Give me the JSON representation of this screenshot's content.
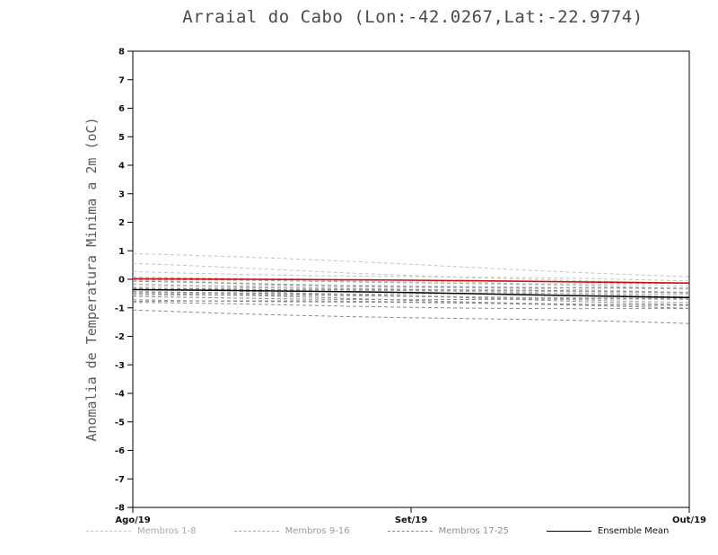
{
  "window": {
    "background": "#ffffff"
  },
  "chart_data": {
    "type": "line",
    "title": "Arraial do Cabo (Lon:-42.0267,Lat:-22.9774)",
    "ylabel": "Anomalia de Temperatura Minima a 2m (oC)",
    "xlabel": "",
    "ylim": [
      -8,
      8
    ],
    "ytick_step": 1,
    "xtick_labels": [
      "Ago/19",
      "Set/19",
      "Out/19"
    ],
    "xtick_positions": [
      0,
      0.5,
      1
    ],
    "grid": false,
    "frame_color": "#000000",
    "tick_label_color": "#111111",
    "member_groups": [
      {
        "name": "Membros 1-8",
        "color": "#c4c4c4"
      },
      {
        "name": "Membros 9-16",
        "color": "#a6a6a6"
      },
      {
        "name": "Membros 17-25",
        "color": "#8a8a8a"
      }
    ],
    "members": [
      {
        "group": 0,
        "start": 0.9,
        "end": 0.12
      },
      {
        "group": 0,
        "start": 0.52,
        "end": -0.18
      },
      {
        "group": 0,
        "start": 0.28,
        "end": -0.08
      },
      {
        "group": 0,
        "start": 0.12,
        "end": -0.3
      },
      {
        "group": 0,
        "start": 0.02,
        "end": -0.22
      },
      {
        "group": 0,
        "start": -0.06,
        "end": -0.38
      },
      {
        "group": 0,
        "start": -0.14,
        "end": -0.46
      },
      {
        "group": 0,
        "start": -0.22,
        "end": -0.3
      },
      {
        "group": 1,
        "start": -0.05,
        "end": -0.15
      },
      {
        "group": 1,
        "start": -0.18,
        "end": -0.52
      },
      {
        "group": 1,
        "start": -0.26,
        "end": -0.6
      },
      {
        "group": 1,
        "start": -0.32,
        "end": -0.42
      },
      {
        "group": 1,
        "start": -0.38,
        "end": -0.7
      },
      {
        "group": 1,
        "start": -0.44,
        "end": -0.56
      },
      {
        "group": 1,
        "start": -0.5,
        "end": -0.78
      },
      {
        "group": 1,
        "start": -0.56,
        "end": -0.64
      },
      {
        "group": 2,
        "start": -0.1,
        "end": -0.35
      },
      {
        "group": 2,
        "start": -0.28,
        "end": -0.48
      },
      {
        "group": 2,
        "start": -0.4,
        "end": -0.85
      },
      {
        "group": 2,
        "start": -0.52,
        "end": -0.92
      },
      {
        "group": 2,
        "start": -0.62,
        "end": -0.74
      },
      {
        "group": 2,
        "start": -0.68,
        "end": -1.0
      },
      {
        "group": 2,
        "start": -0.76,
        "end": -0.88
      },
      {
        "group": 2,
        "start": -0.85,
        "end": -1.05
      },
      {
        "group": 2,
        "start": -1.08,
        "end": -1.58
      }
    ],
    "ensemble_mean": {
      "name": "Ensemble Mean",
      "color": "#000000",
      "start": -0.35,
      "end": -0.62
    },
    "reference_line": {
      "name": "red-reference-line",
      "color": "#cc1111",
      "start": 0.03,
      "end": -0.12
    },
    "legend": [
      {
        "label": "Membros 1-8",
        "style": "dashed",
        "color": "#c4c4c4",
        "text_color": "#a9a9a9"
      },
      {
        "label": "Membros 9-16",
        "style": "dashed",
        "color": "#a6a6a6",
        "text_color": "#9a9a9a"
      },
      {
        "label": "Membros 17-25",
        "style": "dashed",
        "color": "#8a8a8a",
        "text_color": "#8f8f8f"
      },
      {
        "label": "Ensemble Mean",
        "style": "solid",
        "color": "#000000",
        "text_color": "#111111"
      }
    ],
    "legend_position": "bottom"
  }
}
